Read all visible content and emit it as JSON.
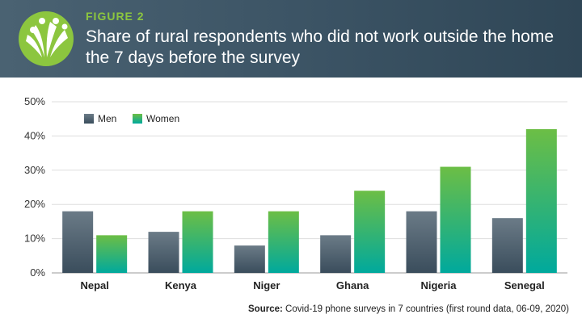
{
  "header": {
    "figure_label": "FIGURE 2",
    "title": "Share of rural respondents who did not work outside the home the 7 days before the survey"
  },
  "logo": {
    "icon": "leaf-people-logo",
    "color": "#8cc63f"
  },
  "chart_data": {
    "type": "bar",
    "categories": [
      "Nepal",
      "Kenya",
      "Niger",
      "Ghana",
      "Nigeria",
      "Senegal"
    ],
    "series": [
      {
        "name": "Men",
        "values": [
          18,
          12,
          8,
          11,
          18,
          16
        ],
        "color_top": "#6b7b87",
        "color_bottom": "#3a4d5c"
      },
      {
        "name": "Women",
        "values": [
          11,
          18,
          18,
          24,
          31,
          42
        ],
        "color_top": "#6cbe45",
        "color_bottom": "#00a99d"
      }
    ],
    "ylim": [
      0,
      50
    ],
    "yticks": [
      "0%",
      "10%",
      "20%",
      "30%",
      "40%",
      "50%"
    ],
    "ytick_values": [
      0,
      10,
      20,
      30,
      40,
      50
    ],
    "grid": true,
    "legend_position": "top-left"
  },
  "source": {
    "label": "Source:",
    "text": "Covid-19 phone surveys in 7 countries (first round data, 06-09, 2020)"
  }
}
